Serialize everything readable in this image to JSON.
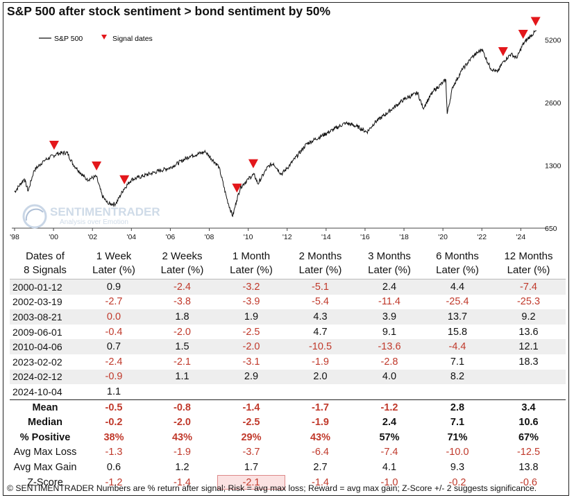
{
  "title": "S&P 500 after stock sentiment > bond sentiment by 50%",
  "legend": {
    "series_label": "S&P 500",
    "signal_label": "Signal dates"
  },
  "watermark": {
    "name": "SENTIMENTRADER",
    "tagline": "Analysis over Emotion"
  },
  "chart_data": {
    "type": "line",
    "title": "S&P 500 after stock sentiment > bond sentiment by 50%",
    "y_scale": "log",
    "ylim": [
      650,
      6000
    ],
    "y_ticks": [
      650,
      1300,
      2600,
      5200
    ],
    "x_ticks": [
      "'98",
      "'00",
      "'02",
      "'04",
      "'06",
      "'08",
      "'10",
      "'12",
      "'14",
      "'16",
      "'18",
      "'20",
      "'22",
      "'24"
    ],
    "legend_position": "top-left",
    "series": [
      {
        "name": "S&P 500",
        "x": [
          1998.0,
          1998.5,
          1998.7,
          1999.0,
          1999.5,
          2000.0,
          2000.2,
          2000.7,
          2001.0,
          2001.7,
          2002.2,
          2002.5,
          2002.8,
          2003.2,
          2003.6,
          2004.0,
          2005.0,
          2006.0,
          2007.0,
          2007.8,
          2008.5,
          2008.9,
          2009.2,
          2009.4,
          2009.6,
          2010.0,
          2010.3,
          2010.5,
          2011.0,
          2011.3,
          2011.7,
          2012.0,
          2013.0,
          2014.0,
          2015.0,
          2015.6,
          2016.1,
          2016.5,
          2017.0,
          2018.0,
          2018.7,
          2018.98,
          2019.5,
          2020.0,
          2020.15,
          2020.22,
          2020.5,
          2021.0,
          2021.5,
          2022.0,
          2022.45,
          2022.8,
          2023.1,
          2023.5,
          2023.8,
          2024.1,
          2024.5,
          2024.8
        ],
        "values": [
          970,
          1120,
          980,
          1230,
          1370,
          1450,
          1480,
          1500,
          1320,
          1110,
          1150,
          930,
          850,
          850,
          1000,
          1110,
          1190,
          1270,
          1440,
          1510,
          1280,
          900,
          740,
          880,
          1020,
          1120,
          1180,
          1060,
          1280,
          1330,
          1180,
          1260,
          1650,
          1850,
          2080,
          2000,
          1880,
          2090,
          2270,
          2700,
          2900,
          2450,
          2950,
          3250,
          3350,
          2300,
          3100,
          3750,
          4300,
          4700,
          3800,
          3650,
          4100,
          4450,
          4250,
          4950,
          5450,
          5750
        ]
      },
      {
        "name": "Signal dates",
        "x": [
          2000.03,
          2002.21,
          2003.64,
          2009.42,
          2010.26,
          2023.09,
          2024.12,
          2024.76
        ],
        "values": [
          1465,
          1165,
          1000,
          912,
          1194,
          4120,
          4990,
          5750
        ]
      }
    ]
  },
  "table": {
    "headers": [
      "Dates of\n8 Signals",
      "1 Week\nLater (%)",
      "2 Weeks\nLater (%)",
      "1 Month\nLater (%)",
      "2 Months\nLater (%)",
      "3 Months\nLater (%)",
      "6 Months\nLater (%)",
      "12 Months\nLater (%)"
    ],
    "rows": [
      [
        "2000-01-12",
        "0.9",
        "-2.4",
        "-3.2",
        "-5.1",
        "2.4",
        "4.4",
        "-7.4"
      ],
      [
        "2002-03-19",
        "-2.7",
        "-3.8",
        "-3.9",
        "-5.4",
        "-11.4",
        "-25.4",
        "-25.3"
      ],
      [
        "2003-08-21",
        "0.0",
        "1.8",
        "1.9",
        "4.3",
        "3.9",
        "13.7",
        "9.2"
      ],
      [
        "2009-06-01",
        "-0.4",
        "-2.0",
        "-2.5",
        "4.7",
        "9.1",
        "15.8",
        "13.6"
      ],
      [
        "2010-04-06",
        "0.7",
        "1.5",
        "-2.0",
        "-10.5",
        "-13.6",
        "-4.4",
        "12.1"
      ],
      [
        "2023-02-02",
        "-2.4",
        "-2.1",
        "-3.1",
        "-1.9",
        "-2.8",
        "7.1",
        "18.3"
      ],
      [
        "2024-02-12",
        "-0.9",
        "1.1",
        "2.9",
        "2.0",
        "4.0",
        "8.2",
        ""
      ],
      [
        "2024-10-04",
        "1.1",
        "",
        "",
        "",
        "",
        "",
        ""
      ]
    ],
    "stats": [
      [
        "Mean",
        "-0.5",
        "-0.8",
        "-1.4",
        "-1.7",
        "-1.2",
        "2.8",
        "3.4"
      ],
      [
        "Median",
        "-0.2",
        "-2.0",
        "-2.5",
        "-1.9",
        "2.4",
        "7.1",
        "10.6"
      ],
      [
        "% Positive",
        "38%",
        "43%",
        "29%",
        "43%",
        "57%",
        "71%",
        "67%"
      ],
      [
        "Avg Max Loss",
        "-1.3",
        "-1.9",
        "-3.7",
        "-6.4",
        "-7.4",
        "-10.0",
        "-12.5"
      ],
      [
        "Avg Max Gain",
        "0.6",
        "1.2",
        "1.7",
        "2.7",
        "4.1",
        "9.3",
        "13.8"
      ],
      [
        "Z-Score",
        "-1.2",
        "-1.4",
        "-2.1",
        "-1.4",
        "-1.0",
        "-0.2",
        "-0.6"
      ]
    ]
  },
  "footer": "© SENTIMENTRADER  Numbers are % return after signal; Risk = avg max loss; Reward = avg max gain; Z-Score +/- 2 suggests significance.",
  "colors": {
    "signal": "#e3171b",
    "negative": "#c0392b",
    "line": "#111111",
    "highlight": "#fbe2e2"
  }
}
